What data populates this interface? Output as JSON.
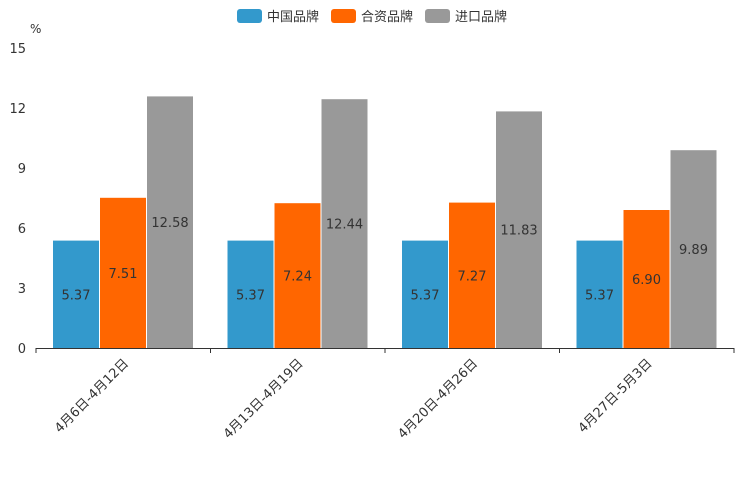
{
  "chart_data": {
    "type": "bar",
    "unit_label": "%",
    "categories": [
      "4月6日-4月12日",
      "4月13日-4月19日",
      "4月20日-4月26日",
      "4月27日-5月3日"
    ],
    "series": [
      {
        "name": "中国品牌",
        "color": "#3399cc",
        "values": [
          5.37,
          5.37,
          5.37,
          5.37
        ],
        "labels": [
          "5.37",
          "5.37",
          "5.37",
          "5.37"
        ]
      },
      {
        "name": "合资品牌",
        "color": "#ff6600",
        "values": [
          7.51,
          7.24,
          7.27,
          6.9
        ],
        "labels": [
          "7.51",
          "7.24",
          "7.27",
          "6.90"
        ]
      },
      {
        "name": "进口品牌",
        "color": "#999999",
        "values": [
          12.58,
          12.44,
          11.83,
          9.89
        ],
        "labels": [
          "12.58",
          "12.44",
          "11.83",
          "9.89"
        ]
      }
    ],
    "y_ticks": [
      "0",
      "3",
      "6",
      "9",
      "12",
      "15"
    ],
    "ylim": [
      0,
      15
    ],
    "legend_position": "top-center"
  }
}
